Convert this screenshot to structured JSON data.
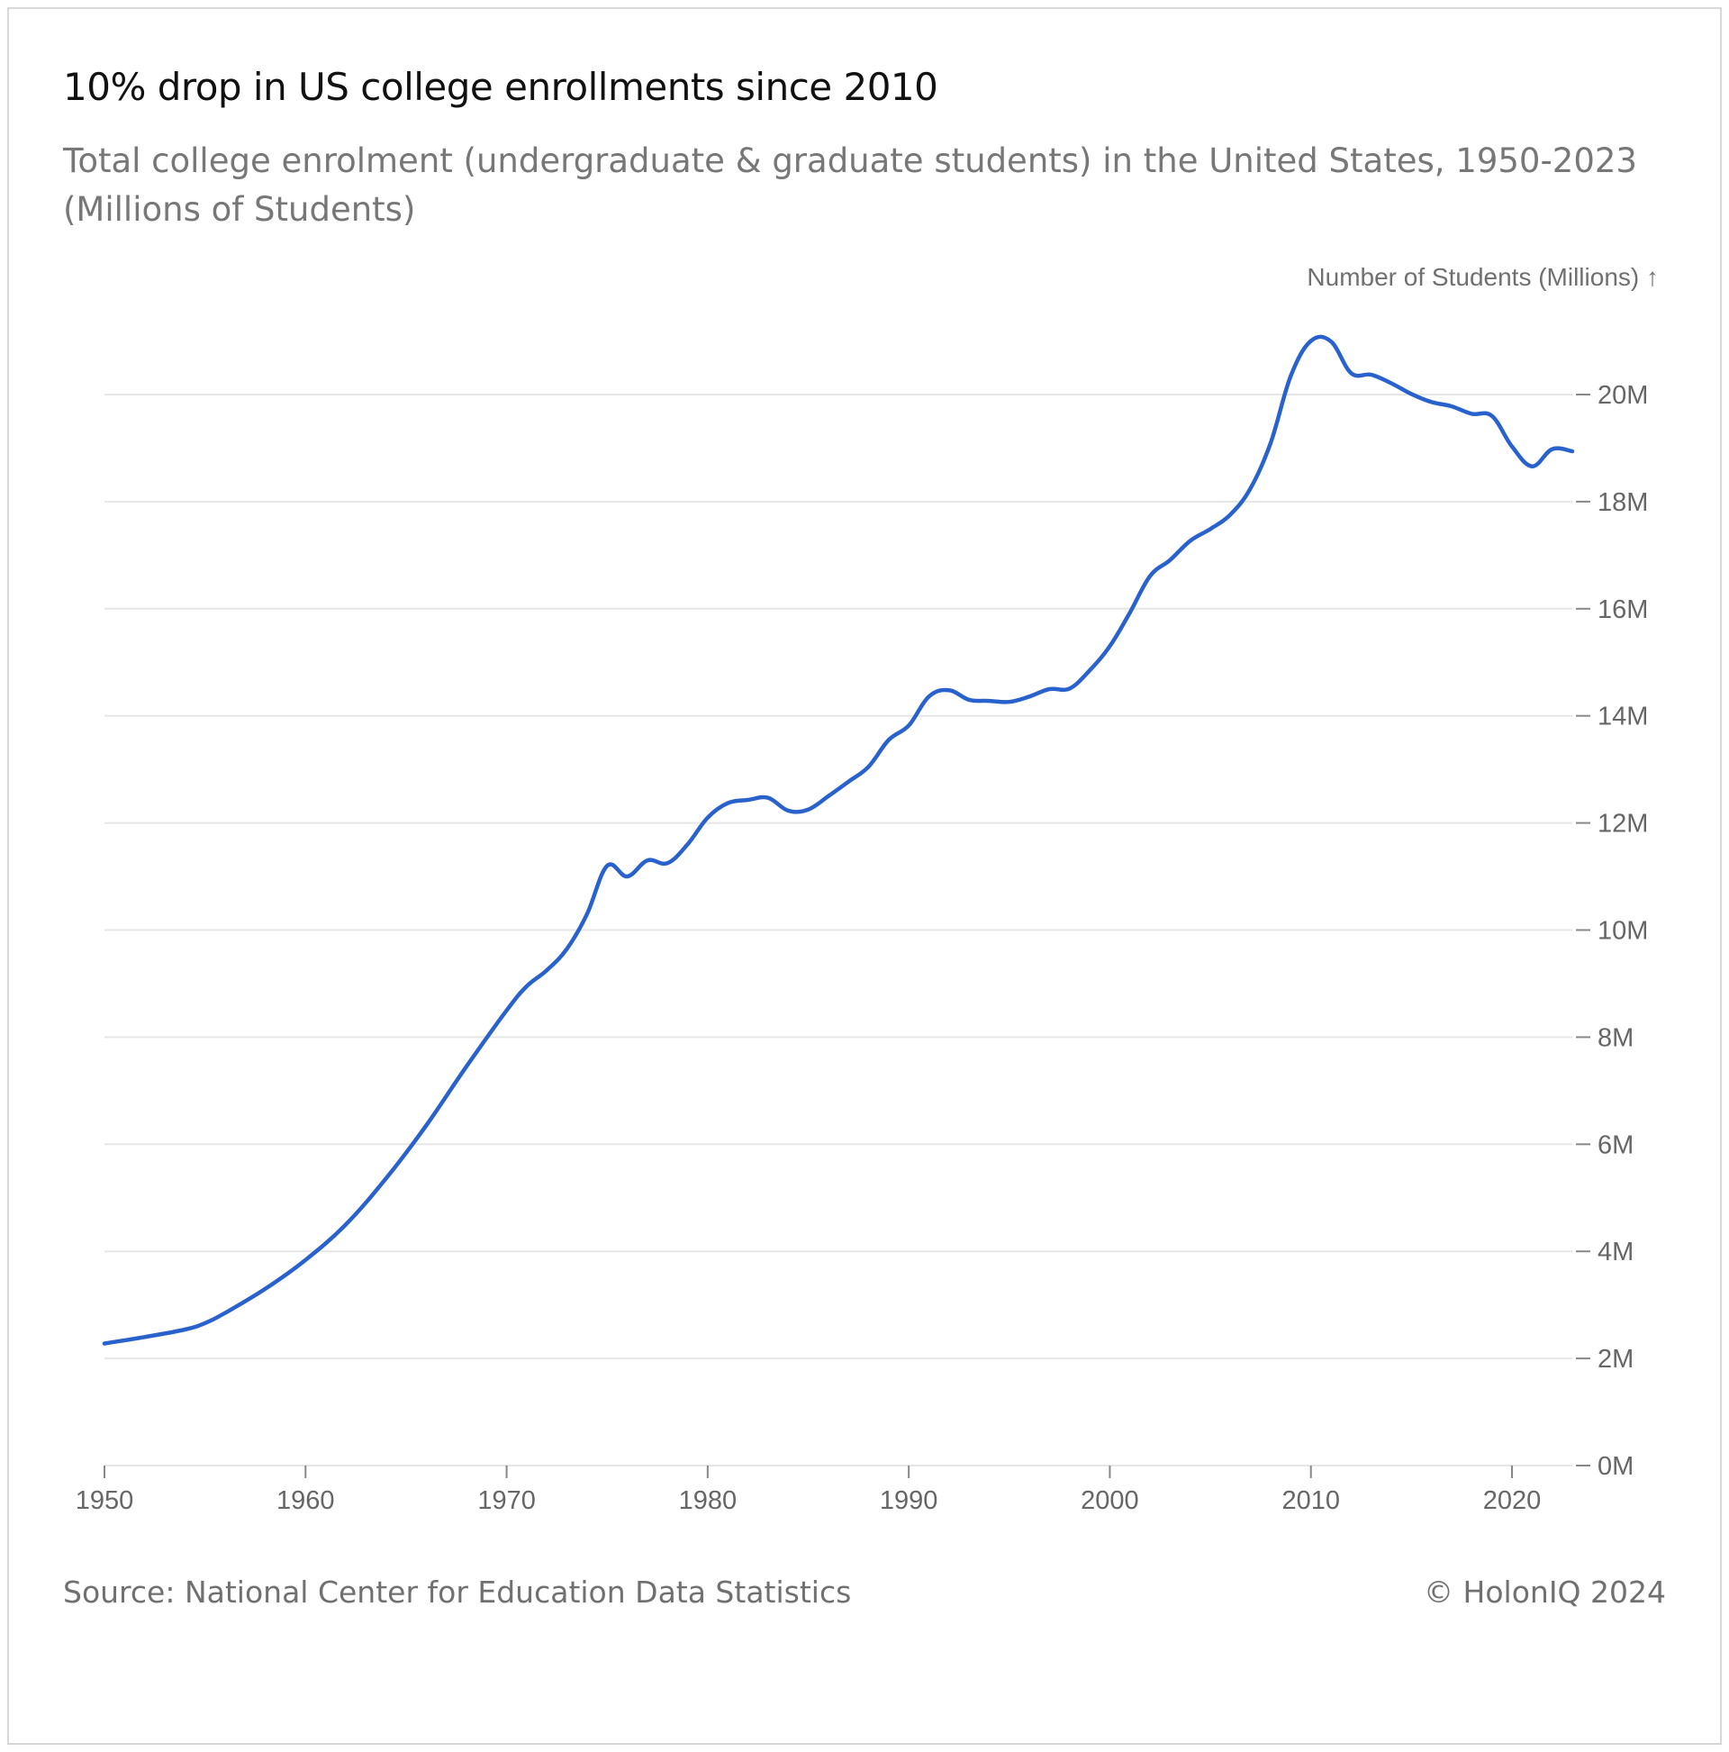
{
  "header": {
    "title": "10% drop in US college enrollments since 2010",
    "subtitle": "Total college enrolment (undergraduate & graduate students) in the United States, 1950-2023 (Millions of Students)"
  },
  "footer": {
    "source": "Source: National Center for Education Data Statistics",
    "copyright": "© HolonIQ 2024"
  },
  "colors": {
    "line": "#2962cc",
    "grid": "#e6e6e6",
    "tick": "#888888"
  },
  "chart_data": {
    "type": "line",
    "title": "10% drop in US college enrollments since 2010",
    "subtitle": "Total college enrolment (undergraduate & graduate students) in the United States, 1950-2023 (Millions of Students)",
    "xlabel": "",
    "ylabel": "Number of Students (Millions) ↑",
    "xlim": [
      1950,
      2023
    ],
    "ylim": [
      0,
      22
    ],
    "x_ticks": [
      1950,
      1960,
      1970,
      1980,
      1990,
      2000,
      2010,
      2020
    ],
    "x_tick_labels": [
      "1950",
      "1960",
      "1970",
      "1980",
      "1990",
      "2000",
      "2010",
      "2020"
    ],
    "y_ticks": [
      0,
      2,
      4,
      6,
      8,
      10,
      12,
      14,
      16,
      18,
      20
    ],
    "y_tick_labels": [
      "0M",
      "2M",
      "4M",
      "6M",
      "8M",
      "10M",
      "12M",
      "14M",
      "16M",
      "18M",
      "20M"
    ],
    "y_axis_position": "right",
    "grid": true,
    "legend": "none",
    "series": [
      {
        "x": [
          1950,
          1952,
          1954,
          1955,
          1956,
          1958,
          1960,
          1962,
          1964,
          1966,
          1968,
          1970,
          1971,
          1972,
          1973,
          1974,
          1975,
          1976,
          1977,
          1978,
          1979,
          1980,
          1981,
          1982,
          1983,
          1984,
          1985,
          1986,
          1987,
          1988,
          1989,
          1990,
          1991,
          1992,
          1993,
          1994,
          1995,
          1996,
          1997,
          1998,
          1999,
          2000,
          2001,
          2002,
          2003,
          2004,
          2005,
          2006,
          2007,
          2008,
          2009,
          2010,
          2011,
          2012,
          2013,
          2014,
          2015,
          2016,
          2017,
          2018,
          2019,
          2020,
          2021,
          2022,
          2023
        ],
        "values": [
          2.28,
          2.4,
          2.54,
          2.66,
          2.85,
          3.3,
          3.84,
          4.5,
          5.36,
          6.35,
          7.45,
          8.5,
          8.95,
          9.25,
          9.65,
          10.3,
          11.2,
          11.0,
          11.3,
          11.25,
          11.6,
          12.1,
          12.37,
          12.43,
          12.47,
          12.23,
          12.25,
          12.5,
          12.77,
          13.05,
          13.55,
          13.82,
          14.36,
          14.48,
          14.3,
          14.28,
          14.26,
          14.36,
          14.5,
          14.51,
          14.85,
          15.3,
          15.93,
          16.61,
          16.91,
          17.27,
          17.49,
          17.76,
          18.25,
          19.1,
          20.35,
          21.0,
          20.99,
          20.4,
          20.37,
          20.21,
          20.01,
          19.86,
          19.78,
          19.64,
          19.6,
          19.03,
          18.66,
          18.98,
          18.94
        ]
      }
    ]
  }
}
